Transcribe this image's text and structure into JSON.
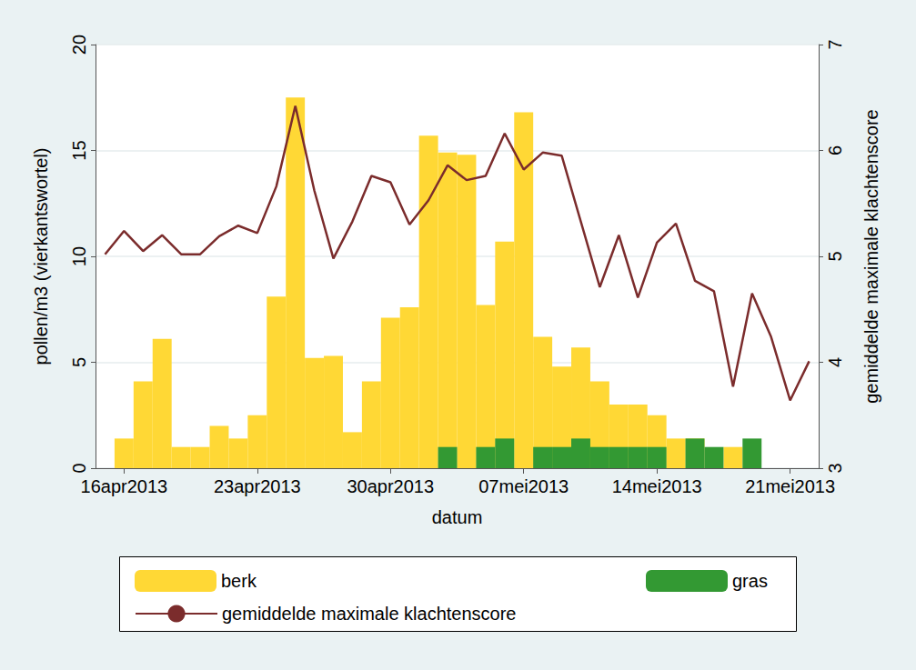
{
  "chart_data": {
    "type": "bar",
    "x_label": "datum",
    "y_label": "pollen/m3 (vierkantswortel)",
    "y2_label": "gemiddelde maximale klachtenscore",
    "categories": [
      null,
      "16apr2013",
      null,
      null,
      null,
      null,
      null,
      null,
      "23apr2013",
      null,
      null,
      null,
      null,
      null,
      null,
      "30apr2013",
      null,
      null,
      null,
      null,
      null,
      null,
      "07mei2013",
      null,
      null,
      null,
      null,
      null,
      null,
      "14mei2013",
      null,
      null,
      null,
      null,
      null,
      null,
      "21mei2013",
      null
    ],
    "ylim": [
      0,
      20
    ],
    "yticks": [
      0,
      5,
      10,
      15,
      20
    ],
    "y2lim": [
      3,
      7
    ],
    "y2ticks": [
      3,
      4,
      5,
      6,
      7
    ],
    "grid": true,
    "legend": "bottom",
    "series": [
      {
        "name": "berk",
        "type": "bar",
        "color": "#ffd835",
        "values": [
          null,
          1.4,
          4.1,
          6.1,
          1.0,
          1.0,
          2.0,
          1.4,
          2.5,
          8.1,
          17.5,
          5.2,
          5.3,
          1.7,
          4.1,
          7.1,
          7.6,
          15.7,
          14.9,
          14.8,
          7.7,
          10.7,
          16.8,
          6.2,
          4.8,
          5.7,
          4.1,
          3.0,
          3.0,
          2.5,
          1.4,
          1.4,
          null,
          1.0,
          null,
          null,
          null,
          null
        ]
      },
      {
        "name": "gras",
        "type": "bar",
        "color": "#339933",
        "values": [
          null,
          null,
          null,
          null,
          null,
          null,
          null,
          null,
          null,
          null,
          null,
          null,
          null,
          null,
          null,
          null,
          null,
          null,
          1.0,
          null,
          1.0,
          1.4,
          null,
          1.0,
          1.0,
          1.4,
          1.0,
          1.0,
          1.0,
          1.0,
          null,
          1.4,
          1.0,
          null,
          1.4,
          null,
          null,
          null
        ]
      },
      {
        "name": "gemiddelde maximale klachtenscore",
        "type": "line",
        "axis": "y2",
        "color": "#7b2c2c",
        "marker": "none",
        "line_style": "solid",
        "values": [
          5.02,
          5.24,
          5.05,
          5.2,
          5.02,
          5.02,
          5.19,
          5.29,
          5.22,
          5.66,
          6.42,
          5.62,
          4.98,
          5.33,
          5.76,
          5.7,
          5.3,
          5.53,
          5.86,
          5.72,
          5.76,
          6.16,
          5.82,
          5.98,
          5.95,
          5.33,
          4.71,
          5.2,
          4.61,
          5.13,
          5.31,
          4.77,
          4.67,
          3.77,
          4.65,
          4.24,
          3.64,
          4.01
        ]
      }
    ]
  }
}
